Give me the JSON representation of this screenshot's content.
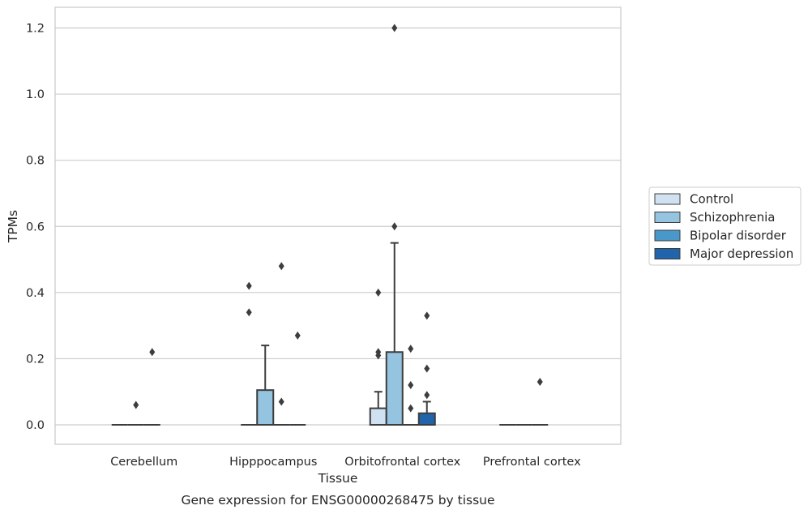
{
  "chart_data": {
    "type": "box",
    "title": "",
    "caption": "Gene expression for ENSG00000268475 by tissue",
    "xlabel": "Tissue",
    "ylabel": "TPMs",
    "ylim": [
      -0.058,
      1.26
    ],
    "yticks": [
      "0.0",
      "0.2",
      "0.4",
      "0.6",
      "0.8",
      "1.0",
      "1.2"
    ],
    "ytick_values": [
      0.0,
      0.2,
      0.4,
      0.6,
      0.8,
      1.0,
      1.2
    ],
    "grid": "horizontal",
    "legend_position": "right",
    "categories": [
      "Cerebellum",
      "Hipppocampus",
      "Orbitofrontal cortex",
      "Prefrontal cortex"
    ],
    "series": [
      {
        "name": "Control",
        "color": "#d0e1f2",
        "boxes": [
          {
            "q1": 0.0,
            "median": 0.0,
            "q3": 0.0,
            "whislo": 0.0,
            "whishi": 0.0,
            "fliers": []
          },
          {
            "q1": 0.0,
            "median": 0.0,
            "q3": 0.0,
            "whislo": 0.0,
            "whishi": 0.0,
            "fliers": [
              0.34,
              0.42
            ]
          },
          {
            "q1": 0.0,
            "median": 0.0,
            "q3": 0.05,
            "whislo": 0.0,
            "whishi": 0.1,
            "fliers": [
              0.21,
              0.22,
              0.4
            ]
          },
          {
            "q1": 0.0,
            "median": 0.0,
            "q3": 0.0,
            "whislo": 0.0,
            "whishi": 0.0,
            "fliers": []
          }
        ]
      },
      {
        "name": "Schizophrenia",
        "color": "#94c4df",
        "boxes": [
          {
            "q1": 0.0,
            "median": 0.0,
            "q3": 0.0,
            "whislo": 0.0,
            "whishi": 0.0,
            "fliers": [
              0.06
            ]
          },
          {
            "q1": 0.0,
            "median": 0.0,
            "q3": 0.105,
            "whislo": 0.0,
            "whishi": 0.24,
            "fliers": []
          },
          {
            "q1": 0.0,
            "median": 0.0,
            "q3": 0.22,
            "whislo": 0.0,
            "whishi": 0.55,
            "fliers": [
              0.6,
              1.2
            ]
          },
          {
            "q1": 0.0,
            "median": 0.0,
            "q3": 0.0,
            "whislo": 0.0,
            "whishi": 0.0,
            "fliers": []
          }
        ]
      },
      {
        "name": "Bipolar disorder",
        "color": "#4a98c9",
        "boxes": [
          {
            "q1": 0.0,
            "median": 0.0,
            "q3": 0.0,
            "whislo": 0.0,
            "whishi": 0.0,
            "fliers": [
              0.22
            ]
          },
          {
            "q1": 0.0,
            "median": 0.0,
            "q3": 0.0,
            "whislo": 0.0,
            "whishi": 0.0,
            "fliers": [
              0.07,
              0.48
            ]
          },
          {
            "q1": 0.0,
            "median": 0.0,
            "q3": 0.0,
            "whislo": 0.0,
            "whishi": 0.0,
            "fliers": [
              0.05,
              0.12,
              0.23
            ]
          },
          {
            "q1": 0.0,
            "median": 0.0,
            "q3": 0.0,
            "whislo": 0.0,
            "whishi": 0.0,
            "fliers": [
              0.13
            ]
          }
        ]
      },
      {
        "name": "Major depression",
        "color": "#2164ab",
        "boxes": [
          null,
          {
            "q1": 0.0,
            "median": 0.0,
            "q3": 0.0,
            "whislo": 0.0,
            "whishi": 0.0,
            "fliers": [
              0.27
            ]
          },
          {
            "q1": 0.0,
            "median": 0.0,
            "q3": 0.035,
            "whislo": 0.0,
            "whishi": 0.07,
            "fliers": [
              0.09,
              0.17,
              0.33
            ]
          },
          null
        ]
      }
    ]
  }
}
